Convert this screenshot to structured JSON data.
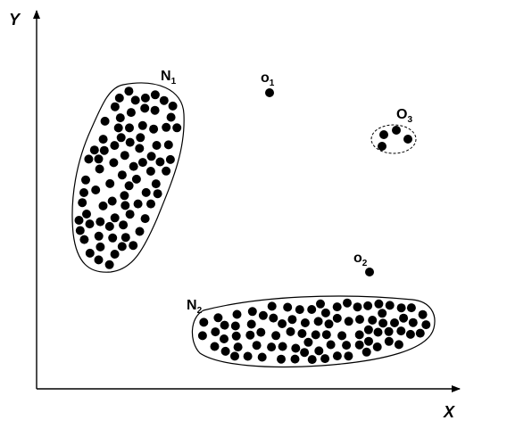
{
  "axes": {
    "x_label": "X",
    "y_label": "Y"
  },
  "clusters": {
    "n1": {
      "base": "N",
      "sub": "1",
      "point_count": 81
    },
    "n2": {
      "base": "N",
      "sub": "2",
      "point_count": 100
    },
    "o3": {
      "base": "O",
      "sub": "3",
      "point_count": 4
    }
  },
  "outliers": {
    "o1": {
      "base": "o",
      "sub": "1"
    },
    "o2": {
      "base": "o",
      "sub": "2"
    }
  },
  "colors": {
    "ink": "#000000",
    "background": "#ffffff"
  }
}
